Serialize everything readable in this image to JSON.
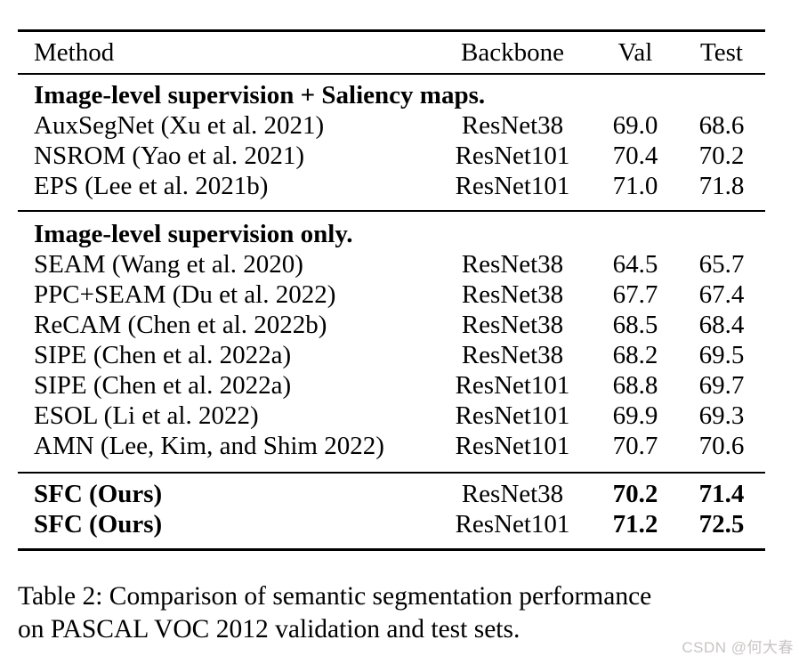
{
  "table": {
    "headers": {
      "method": "Method",
      "backbone": "Backbone",
      "val": "Val",
      "test": "Test"
    },
    "sections": [
      {
        "title": "Image-level supervision + Saliency maps.",
        "rows": [
          {
            "method": "AuxSegNet (Xu et al. 2021)",
            "backbone": "ResNet38",
            "val": "69.0",
            "test": "68.6"
          },
          {
            "method": "NSROM (Yao et al. 2021)",
            "backbone": "ResNet101",
            "val": "70.4",
            "test": "70.2"
          },
          {
            "method": "EPS (Lee et al. 2021b)",
            "backbone": "ResNet101",
            "val": "71.0",
            "test": "71.8"
          }
        ]
      },
      {
        "title": "Image-level supervision only.",
        "rows": [
          {
            "method": "SEAM (Wang et al. 2020)",
            "backbone": "ResNet38",
            "val": "64.5",
            "test": "65.7"
          },
          {
            "method": "PPC+SEAM (Du et al. 2022)",
            "backbone": "ResNet38",
            "val": "67.7",
            "test": "67.4"
          },
          {
            "method": "ReCAM (Chen et al. 2022b)",
            "backbone": "ResNet38",
            "val": "68.5",
            "test": "68.4"
          },
          {
            "method": "SIPE (Chen et al. 2022a)",
            "backbone": "ResNet38",
            "val": "68.2",
            "test": "69.5"
          },
          {
            "method": "SIPE (Chen et al. 2022a)",
            "backbone": "ResNet101",
            "val": "68.8",
            "test": "69.7"
          },
          {
            "method": "ESOL (Li et al. 2022)",
            "backbone": "ResNet101",
            "val": "69.9",
            "test": "69.3"
          },
          {
            "method": "AMN (Lee, Kim, and Shim 2022)",
            "backbone": "ResNet101",
            "val": "70.7",
            "test": "70.6"
          }
        ]
      },
      {
        "title": "",
        "rows": [
          {
            "method": "SFC (Ours)",
            "backbone": "ResNet38",
            "val": "70.2",
            "test": "71.4"
          },
          {
            "method": "SFC (Ours)",
            "backbone": "ResNet101",
            "val": "71.2",
            "test": "72.5"
          }
        ]
      }
    ]
  },
  "caption": {
    "full_text": "Table 2: Comparison of semantic segmentation performance on PASCAL VOC 2012 validation and test sets.",
    "line1": "Table 2: Comparison of semantic segmentation performance",
    "line2": "on PASCAL VOC 2012 validation and test sets."
  },
  "watermark": "CSDN @何大春",
  "colors": {
    "text": "#000000",
    "background": "#ffffff",
    "rule": "#000000",
    "watermark": "#c9c4c4"
  }
}
